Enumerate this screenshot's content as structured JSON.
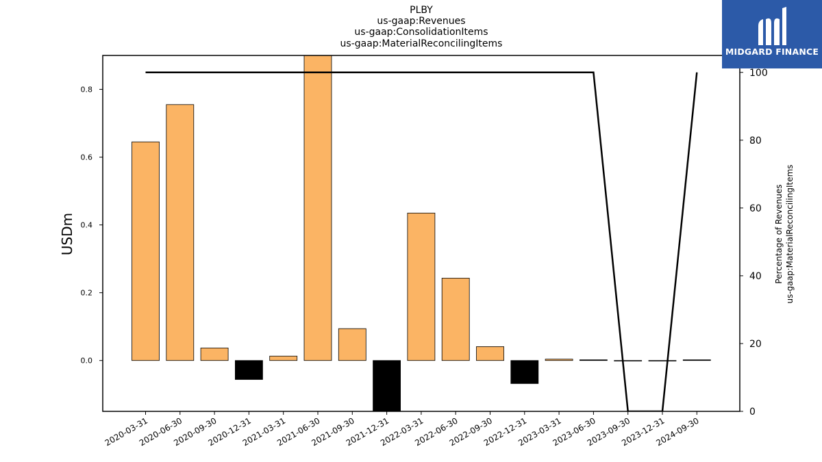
{
  "chart_data": {
    "type": "bar",
    "title_lines": [
      "PLBY",
      "us-gaap:Revenues",
      "us-gaap:ConsolidationItems",
      "us-gaap:MaterialReconcilingItems"
    ],
    "ylabel": "USDm",
    "ylabel_right": [
      "Percentage of Revenues",
      "us-gaap:MaterialReconcilingItems"
    ],
    "categories": [
      "2020-03-31",
      "2020-06-30",
      "2020-09-30",
      "2020-12-31",
      "2021-03-31",
      "2021-06-30",
      "2021-09-30",
      "2021-12-31",
      "2022-03-31",
      "2022-06-30",
      "2022-09-30",
      "2022-12-31",
      "2023-03-31",
      "2023-06-30",
      "2023-09-30",
      "2023-12-31",
      "2024-09-30"
    ],
    "values": [
      0.645,
      0.755,
      0.037,
      -0.056,
      0.013,
      0.95,
      0.094,
      -0.16,
      0.435,
      0.243,
      0.041,
      -0.068,
      0.004,
      0.002,
      -0.001,
      -0.001,
      0.002
    ],
    "bar_colors": [
      "#fbb464",
      "#fbb464",
      "#fbb464",
      "#000000",
      "#fbb464",
      "#fbb464",
      "#fbb464",
      "#000000",
      "#fbb464",
      "#fbb464",
      "#fbb464",
      "#000000",
      "#fbb464",
      "#000000",
      "#fbb464",
      "#000000",
      "#000000"
    ],
    "ylim": [
      -0.15,
      0.9
    ],
    "yticks": [
      "0.0",
      "0.2",
      "0.4",
      "0.6",
      "0.8"
    ],
    "ytick_values": [
      0.0,
      0.2,
      0.4,
      0.6,
      0.8
    ],
    "line_series": {
      "values": [
        100,
        100,
        100,
        100,
        100,
        100,
        100,
        100,
        100,
        100,
        100,
        100,
        100,
        100,
        0,
        0,
        100
      ],
      "color": "#000000"
    },
    "y2lim": [
      0,
      105
    ],
    "y2ticks": [
      "0",
      "20",
      "40",
      "60",
      "80",
      "100"
    ],
    "y2tick_values": [
      0,
      20,
      40,
      60,
      80,
      100
    ],
    "grid": false
  },
  "logo": {
    "text": "MIDGARD FINANCE",
    "color": "#2c5aa8"
  }
}
